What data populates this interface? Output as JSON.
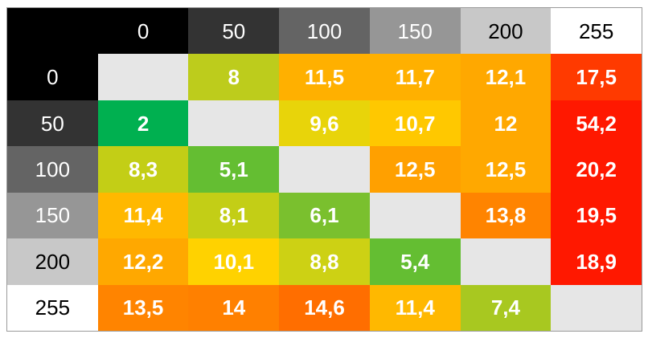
{
  "chart_data": {
    "type": "heatmap",
    "x_labels": [
      "0",
      "50",
      "100",
      "150",
      "200",
      "255"
    ],
    "y_labels": [
      "0",
      "50",
      "100",
      "150",
      "200",
      "255"
    ],
    "header_colors": [
      "#000000",
      "#333333",
      "#646464",
      "#969696",
      "#c8c8c8",
      "#ffffff"
    ],
    "header_text_colors": [
      "#ffffff",
      "#ffffff",
      "#ffffff",
      "#ffffff",
      "#000000",
      "#000000"
    ],
    "diagonal_color": "#e6e6e6",
    "values": [
      [
        null,
        "8",
        "11,5",
        "11,7",
        "12,1",
        "17,5"
      ],
      [
        "2",
        null,
        "9,6",
        "10,7",
        "12",
        "54,2"
      ],
      [
        "8,3",
        "5,1",
        null,
        "12,5",
        "12,5",
        "20,2"
      ],
      [
        "11,4",
        "8,1",
        "6,1",
        null,
        "13,8",
        "19,5"
      ],
      [
        "12,2",
        "10,1",
        "8,8",
        "5,4",
        null,
        "18,9"
      ],
      [
        "13,5",
        "14",
        "14,6",
        "11,4",
        "7,4",
        null
      ]
    ],
    "cell_colors": [
      [
        "#e6e6e6",
        "#bdcc1c",
        "#ffb000",
        "#ffb000",
        "#ffa800",
        "#ff3a00"
      ],
      [
        "#00b050",
        "#e6e6e6",
        "#e8d40a",
        "#ffc800",
        "#ffa800",
        "#ff1800"
      ],
      [
        "#c3ce16",
        "#64be32",
        "#e6e6e6",
        "#ffa000",
        "#ffa800",
        "#ff1800"
      ],
      [
        "#ffb800",
        "#c3ce16",
        "#7ac02e",
        "#e6e6e6",
        "#ff8400",
        "#ff1800"
      ],
      [
        "#ffa800",
        "#ffd200",
        "#cdd114",
        "#64be32",
        "#e6e6e6",
        "#ff1800"
      ],
      [
        "#ff8400",
        "#ff8000",
        "#ff6e00",
        "#ffb800",
        "#a8c820",
        "#e6e6e6"
      ]
    ]
  }
}
